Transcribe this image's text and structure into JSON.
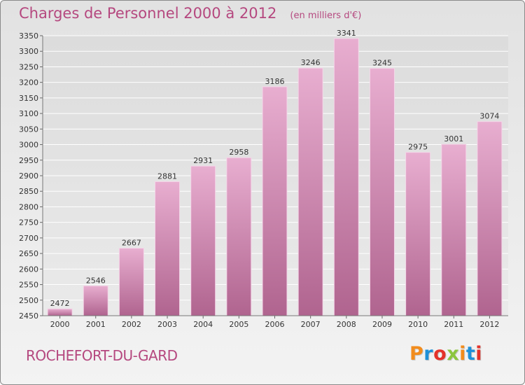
{
  "header": {
    "title": "Charges de Personnel 2000 à 2012",
    "unit_note": "(en milliers d'€)"
  },
  "footer": {
    "commune": "ROCHEFORT-DU-GARD",
    "logo_text": "Proxiti"
  },
  "colors": {
    "bar_light": "#e8aed0",
    "bar_dark": "#b0648f",
    "title": "#b5487f",
    "logo": [
      "#f28c1c",
      "#1e90d8",
      "#e4322a",
      "#8cc63f",
      "#f28c1c",
      "#1e90d8",
      "#e4322a"
    ]
  },
  "chart_data": {
    "type": "bar",
    "title": "Charges de Personnel 2000 à 2012",
    "subtitle": "(en milliers d'€)",
    "categories": [
      "2000",
      "2001",
      "2002",
      "2003",
      "2004",
      "2005",
      "2006",
      "2007",
      "2008",
      "2009",
      "2010",
      "2011",
      "2012"
    ],
    "values": [
      2472,
      2546,
      2667,
      2881,
      2931,
      2958,
      3186,
      3246,
      3341,
      3245,
      2975,
      3001,
      3074
    ],
    "data_labels": [
      "2472",
      "2546",
      "2667",
      "2881",
      "2931",
      "2958",
      "3186",
      "3246",
      "3341",
      "3245",
      "2975",
      "3001",
      "3074"
    ],
    "ylim": [
      2450,
      3350
    ],
    "ytick_step": 50,
    "xlabel": "",
    "ylabel": "",
    "grid": true,
    "legend": "none"
  }
}
